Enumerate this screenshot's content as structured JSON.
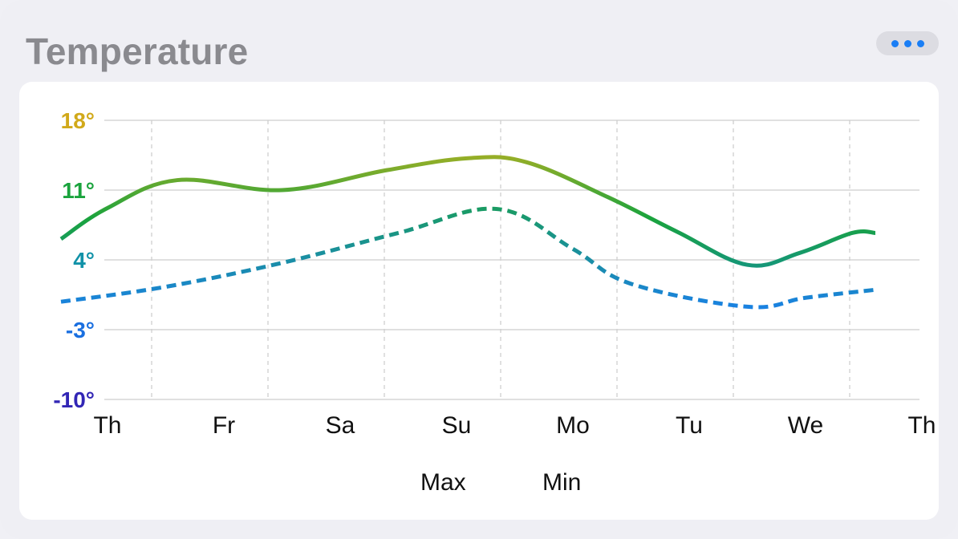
{
  "widget": {
    "title": "Temperature",
    "menu_icon": "ellipsis-icon"
  },
  "colors": {
    "max_gradient": [
      "#e0b51a",
      "#1aa33d",
      "#0f86c7",
      "#3a2cb8"
    ],
    "min_gradient": [
      "#1aa33d",
      "#1a7ef5"
    ],
    "grid": "#d6d6d6",
    "menu_dots": "#1a7ef5"
  },
  "chart_data": {
    "type": "line",
    "categories": [
      "Th",
      "Fr",
      "Sa",
      "Su",
      "Mo",
      "Tu",
      "We",
      "Th"
    ],
    "ylim": [
      -10,
      18
    ],
    "yticks": [
      18,
      11,
      4,
      -3,
      -10
    ],
    "ytick_labels": [
      "18°",
      "11°",
      "4°",
      "-3°",
      "-10°"
    ],
    "ytick_colors": [
      "#d1a91a",
      "#1aa33d",
      "#1192a8",
      "#1a6fe0",
      "#3226b5"
    ],
    "x_partial_first_label": "Th",
    "grid": true,
    "legend_position": "bottom-center",
    "series": [
      {
        "name": "Max",
        "style": "solid",
        "points": [
          [
            -0.4,
            6.1
          ],
          [
            0.0,
            9.2
          ],
          [
            0.6,
            12.0
          ],
          [
            1.5,
            11.0
          ],
          [
            2.4,
            13.0
          ],
          [
            3.1,
            14.2
          ],
          [
            3.6,
            13.8
          ],
          [
            4.3,
            10.3
          ],
          [
            4.9,
            6.8
          ],
          [
            5.5,
            3.5
          ],
          [
            5.95,
            4.7
          ],
          [
            6.4,
            6.7
          ],
          [
            6.6,
            6.7
          ]
        ]
      },
      {
        "name": "Min",
        "style": "dashed",
        "points": [
          [
            -0.4,
            -0.2
          ],
          [
            0.5,
            1.3
          ],
          [
            1.5,
            3.7
          ],
          [
            2.5,
            6.7
          ],
          [
            3.35,
            9.1
          ],
          [
            4.0,
            5.1
          ],
          [
            4.5,
            1.6
          ],
          [
            5.5,
            -0.7
          ],
          [
            6.0,
            0.2
          ],
          [
            6.6,
            1.0
          ]
        ]
      }
    ]
  }
}
